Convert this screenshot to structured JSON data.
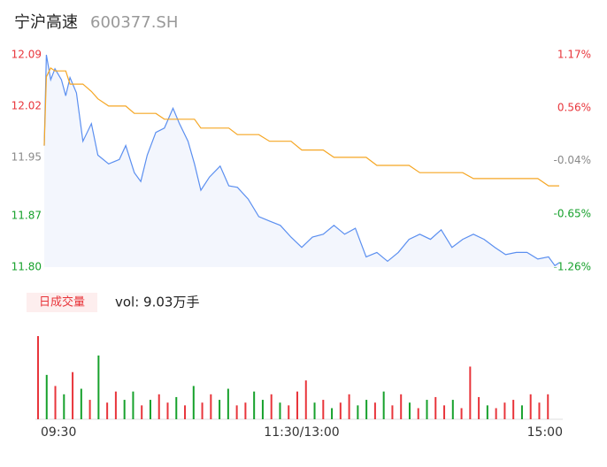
{
  "chart_data": {
    "type": "line",
    "title": "宁沪高速",
    "subtitle": "600377.SH",
    "volume_label": "日成交量",
    "volume_total": "vol: 9.03万手",
    "x": [
      0,
      1,
      3,
      5,
      8,
      10,
      12,
      15,
      18,
      22,
      25,
      30,
      35,
      38,
      42,
      45,
      48,
      52,
      56,
      60,
      63,
      67,
      70,
      73,
      77,
      82,
      86,
      90,
      95,
      100,
      105,
      110,
      115,
      120,
      125,
      130,
      135,
      140,
      145,
      150,
      155,
      160,
      165,
      170,
      175,
      180,
      185,
      190,
      195,
      200,
      205,
      210,
      215,
      220,
      225,
      230,
      235,
      238,
      240
    ],
    "series": [
      {
        "name": "price",
        "color": "#5b8ff0",
        "values": [
          11.966,
          12.09,
          12.056,
          12.071,
          12.056,
          12.034,
          12.059,
          12.038,
          11.972,
          11.996,
          11.953,
          11.941,
          11.947,
          11.966,
          11.929,
          11.917,
          11.953,
          11.984,
          11.99,
          12.017,
          11.996,
          11.972,
          11.941,
          11.905,
          11.923,
          11.938,
          11.911,
          11.909,
          11.893,
          11.869,
          11.863,
          11.857,
          11.841,
          11.827,
          11.841,
          11.845,
          11.857,
          11.845,
          11.853,
          11.814,
          11.82,
          11.808,
          11.82,
          11.838,
          11.845,
          11.838,
          11.851,
          11.827,
          11.838,
          11.845,
          11.838,
          11.827,
          11.817,
          11.82,
          11.82,
          11.811,
          11.814,
          11.802,
          11.806
        ]
      },
      {
        "name": "average",
        "color": "#f5a623",
        "values": [
          11.966,
          12.06,
          12.072,
          12.068,
          12.068,
          12.068,
          12.05,
          12.05,
          12.05,
          12.04,
          12.03,
          12.02,
          12.02,
          12.02,
          12.01,
          12.01,
          12.01,
          12.01,
          12.002,
          12.002,
          12.002,
          12.002,
          12.002,
          11.99,
          11.99,
          11.99,
          11.99,
          11.981,
          11.981,
          11.981,
          11.972,
          11.972,
          11.972,
          11.96,
          11.96,
          11.96,
          11.95,
          11.95,
          11.95,
          11.95,
          11.939,
          11.939,
          11.939,
          11.939,
          11.929,
          11.929,
          11.929,
          11.929,
          11.929,
          11.921,
          11.921,
          11.921,
          11.921,
          11.921,
          11.921,
          11.921,
          11.911,
          11.911,
          11.911
        ]
      }
    ],
    "xlim": [
      0,
      240
    ],
    "xticks": [
      {
        "value": 0,
        "label": "09:30"
      },
      {
        "value": 120,
        "label": "11:30/13:00"
      },
      {
        "value": 240,
        "label": "15:00"
      }
    ],
    "ylim": [
      11.8,
      12.09
    ],
    "yticks": [
      {
        "value": 12.09,
        "label": "12.09"
      },
      {
        "value": 12.02,
        "label": "12.02"
      },
      {
        "value": 11.95,
        "label": "11.95"
      },
      {
        "value": 11.87,
        "label": "11.87"
      },
      {
        "value": 11.8,
        "label": "11.80"
      }
    ],
    "y2lim": [
      -1.26,
      1.17
    ],
    "y2ticks": [
      {
        "value": 1.17,
        "label": "1.17%"
      },
      {
        "value": 0.56,
        "label": "0.56%"
      },
      {
        "value": -0.04,
        "label": "-0.04%"
      },
      {
        "value": -0.65,
        "label": "-0.65%"
      },
      {
        "value": -1.26,
        "label": "-1.26%"
      }
    ],
    "up_color": "#e8353b",
    "down_color": "#17a12c",
    "flat_color": "#8a8a8a",
    "volume": {
      "x": [
        0,
        4,
        8,
        12,
        16,
        20,
        24,
        28,
        32,
        36,
        40,
        44,
        48,
        52,
        56,
        60,
        64,
        68,
        72,
        76,
        80,
        84,
        88,
        92,
        96,
        100,
        104,
        108,
        112,
        116,
        120,
        124,
        128,
        132,
        136,
        140,
        144,
        148,
        152,
        156,
        160,
        164,
        168,
        172,
        176,
        180,
        184,
        188,
        192,
        196,
        200,
        204,
        208,
        212,
        216,
        220,
        224,
        228,
        232,
        236
      ],
      "values": [
        3000,
        1600,
        1200,
        900,
        1700,
        1100,
        700,
        2300,
        600,
        1000,
        700,
        1000,
        500,
        700,
        900,
        600,
        800,
        500,
        1200,
        600,
        900,
        700,
        1100,
        500,
        600,
        1000,
        700,
        900,
        600,
        500,
        1000,
        1400,
        600,
        700,
        400,
        600,
        900,
        500,
        700,
        600,
        1000,
        500,
        900,
        600,
        400,
        700,
        800,
        500,
        700,
        400,
        1900,
        800,
        500,
        400,
        600,
        700,
        500,
        900,
        600,
        900
      ],
      "colors": [
        "#e8353b",
        "#17a12c",
        "#e8353b",
        "#17a12c",
        "#e8353b",
        "#17a12c",
        "#e8353b",
        "#17a12c",
        "#e8353b",
        "#e8353b",
        "#17a12c",
        "#17a12c",
        "#e8353b",
        "#17a12c",
        "#e8353b",
        "#e8353b",
        "#17a12c",
        "#e8353b",
        "#17a12c",
        "#e8353b",
        "#e8353b",
        "#17a12c",
        "#17a12c",
        "#e8353b",
        "#e8353b",
        "#17a12c",
        "#17a12c",
        "#e8353b",
        "#17a12c",
        "#e8353b",
        "#e8353b",
        "#e8353b",
        "#17a12c",
        "#e8353b",
        "#17a12c",
        "#e8353b",
        "#e8353b",
        "#17a12c",
        "#17a12c",
        "#e8353b",
        "#17a12c",
        "#e8353b",
        "#e8353b",
        "#17a12c",
        "#e8353b",
        "#17a12c",
        "#e8353b",
        "#e8353b",
        "#17a12c",
        "#e8353b",
        "#e8353b",
        "#e8353b",
        "#17a12c",
        "#e8353b",
        "#e8353b",
        "#e8353b",
        "#17a12c",
        "#e8353b",
        "#e8353b",
        "#e8353b"
      ],
      "ylim": [
        0,
        3000
      ]
    }
  }
}
